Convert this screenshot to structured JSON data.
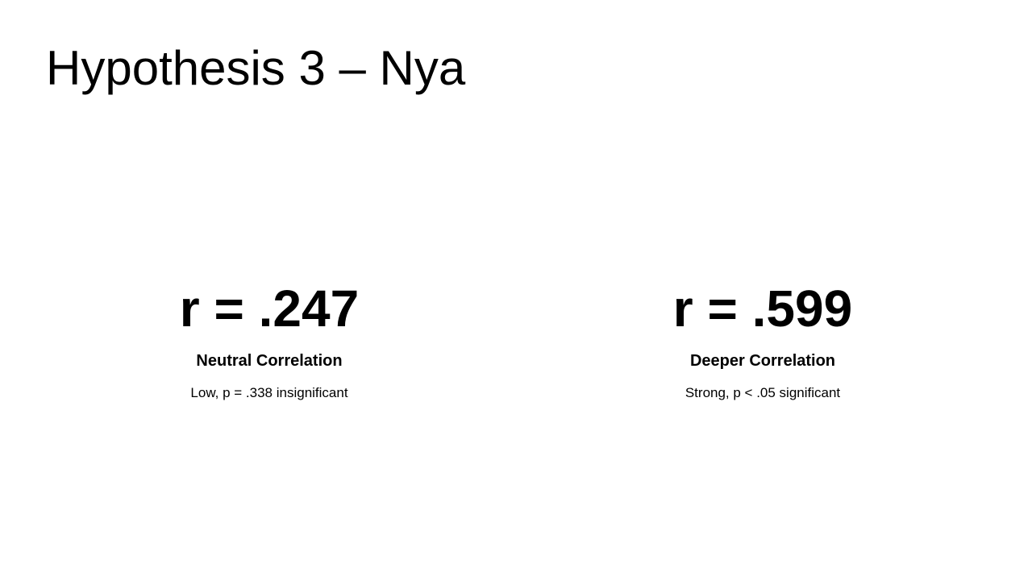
{
  "slide": {
    "title": "Hypothesis 3 – Nya",
    "stats": [
      {
        "value": "r = .247",
        "label": "Neutral Correlation",
        "caption": "Low, p = .338 insignificant"
      },
      {
        "value": "r = .599",
        "label": "Deeper Correlation",
        "caption": "Strong, p < .05 significant"
      }
    ]
  },
  "colors": {
    "background": "#ffffff",
    "text": "#000000"
  }
}
